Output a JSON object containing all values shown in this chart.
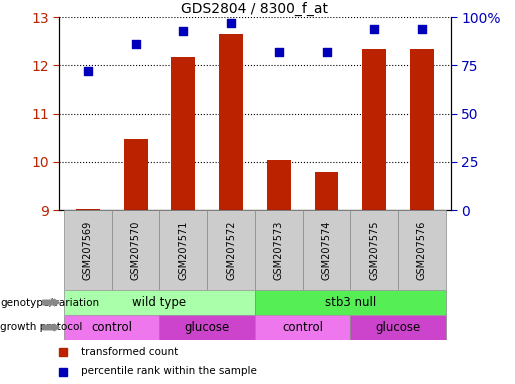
{
  "title": "GDS2804 / 8300_f_at",
  "samples": [
    "GSM207569",
    "GSM207570",
    "GSM207571",
    "GSM207572",
    "GSM207573",
    "GSM207574",
    "GSM207575",
    "GSM207576"
  ],
  "bar_values": [
    9.02,
    10.47,
    12.18,
    12.65,
    10.03,
    9.78,
    12.35,
    12.35
  ],
  "dot_values": [
    72,
    86,
    93,
    97,
    82,
    82,
    94,
    94
  ],
  "ylim_left": [
    9,
    13
  ],
  "ylim_right": [
    0,
    100
  ],
  "yticks_left": [
    9,
    10,
    11,
    12,
    13
  ],
  "yticks_right": [
    0,
    25,
    50,
    75,
    100
  ],
  "bar_color": "#bb2200",
  "dot_color": "#0000bb",
  "bar_width": 0.5,
  "genotype_groups": [
    {
      "label": "wild type",
      "span": [
        0,
        4
      ],
      "color": "#aaffaa"
    },
    {
      "label": "stb3 null",
      "span": [
        4,
        8
      ],
      "color": "#55ee55"
    }
  ],
  "protocol_groups": [
    {
      "label": "control",
      "span": [
        0,
        2
      ],
      "color": "#ee77ee"
    },
    {
      "label": "glucose",
      "span": [
        2,
        4
      ],
      "color": "#cc44cc"
    },
    {
      "label": "control",
      "span": [
        4,
        6
      ],
      "color": "#ee77ee"
    },
    {
      "label": "glucose",
      "span": [
        6,
        8
      ],
      "color": "#cc44cc"
    }
  ],
  "legend_items": [
    {
      "label": "transformed count",
      "color": "#bb2200"
    },
    {
      "label": "percentile rank within the sample",
      "color": "#0000bb"
    }
  ],
  "genotype_label": "genotype/variation",
  "protocol_label": "growth protocol",
  "background_color": "#ffffff",
  "tick_color_left": "#bb2200",
  "tick_color_right": "#0000bb",
  "gray_box_color": "#cccccc",
  "box_edge_color": "#888888"
}
